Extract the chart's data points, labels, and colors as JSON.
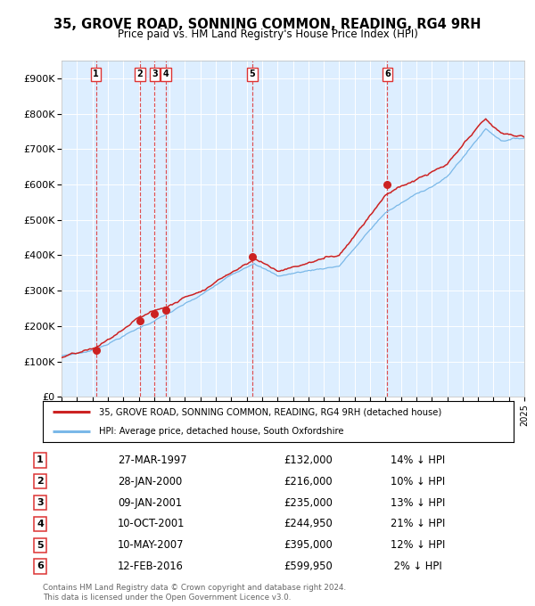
{
  "title": "35, GROVE ROAD, SONNING COMMON, READING, RG4 9RH",
  "subtitle": "Price paid vs. HM Land Registry's House Price Index (HPI)",
  "legend_line1": "35, GROVE ROAD, SONNING COMMON, READING, RG4 9RH (detached house)",
  "legend_line2": "HPI: Average price, detached house, South Oxfordshire",
  "footer1": "Contains HM Land Registry data © Crown copyright and database right 2024.",
  "footer2": "This data is licensed under the Open Government Licence v3.0.",
  "plot_bg_color": "#ddeeff",
  "hpi_color": "#7ab8e8",
  "price_color": "#cc2222",
  "dashed_line_color": "#dd3333",
  "ylim": [
    0,
    950000
  ],
  "yticks": [
    0,
    100000,
    200000,
    300000,
    400000,
    500000,
    600000,
    700000,
    800000,
    900000
  ],
  "ytick_labels": [
    "£0",
    "£100K",
    "£200K",
    "£300K",
    "£400K",
    "£500K",
    "£600K",
    "£700K",
    "£800K",
    "£900K"
  ],
  "sales": [
    {
      "label": "1",
      "date_num": 1997.23,
      "price": 132000
    },
    {
      "label": "2",
      "date_num": 2000.08,
      "price": 216000
    },
    {
      "label": "3",
      "date_num": 2001.03,
      "price": 235000
    },
    {
      "label": "4",
      "date_num": 2001.78,
      "price": 244950
    },
    {
      "label": "5",
      "date_num": 2007.36,
      "price": 395000
    },
    {
      "label": "6",
      "date_num": 2016.12,
      "price": 599950
    }
  ],
  "table_rows": [
    {
      "num": "1",
      "date": "27-MAR-1997",
      "price": "£132,000",
      "pct": "14% ↓ HPI"
    },
    {
      "num": "2",
      "date": "28-JAN-2000",
      "price": "£216,000",
      "pct": "10% ↓ HPI"
    },
    {
      "num": "3",
      "date": "09-JAN-2001",
      "price": "£235,000",
      "pct": "13% ↓ HPI"
    },
    {
      "num": "4",
      "date": "10-OCT-2001",
      "price": "£244,950",
      "pct": "21% ↓ HPI"
    },
    {
      "num": "5",
      "date": "10-MAY-2007",
      "price": "£395,000",
      "pct": "12% ↓ HPI"
    },
    {
      "num": "6",
      "date": "12-FEB-2016",
      "price": "£599,950",
      "pct": " 2% ↓ HPI"
    }
  ]
}
